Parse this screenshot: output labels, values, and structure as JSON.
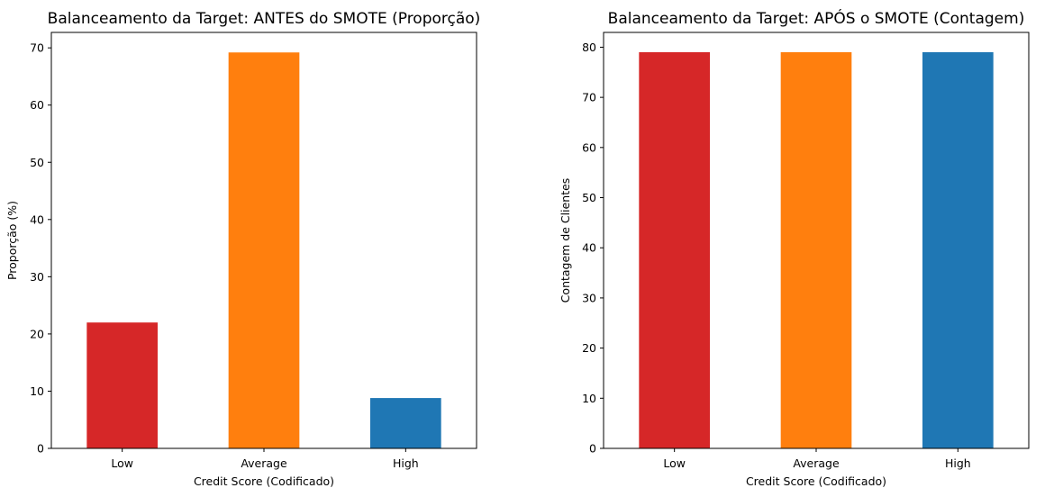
{
  "chart_data": [
    {
      "type": "bar",
      "title": "Balanceamento da Target: ANTES do SMOTE (Proporção)",
      "xlabel": "Credit Score (Codificado)",
      "ylabel": "Proporção (%)",
      "categories": [
        "Low",
        "Average",
        "High"
      ],
      "values": [
        22.0,
        69.2,
        8.8
      ],
      "colors": [
        "#d62728",
        "#ff7f0e",
        "#1f77b4"
      ],
      "ylim": [
        0,
        72.7
      ],
      "yticks": [
        0,
        10,
        20,
        30,
        40,
        50,
        60,
        70
      ],
      "grid": false,
      "legend": "none"
    },
    {
      "type": "bar",
      "title": "Balanceamento da Target: APÓS o SMOTE (Contagem)",
      "xlabel": "Credit Score (Codificado)",
      "ylabel": "Contagem de Clientes",
      "categories": [
        "Low",
        "Average",
        "High"
      ],
      "values": [
        79,
        79,
        79
      ],
      "colors": [
        "#d62728",
        "#ff7f0e",
        "#1f77b4"
      ],
      "ylim": [
        0,
        82.95
      ],
      "yticks": [
        0,
        10,
        20,
        30,
        40,
        50,
        60,
        70,
        80
      ],
      "grid": false,
      "legend": "none"
    }
  ]
}
